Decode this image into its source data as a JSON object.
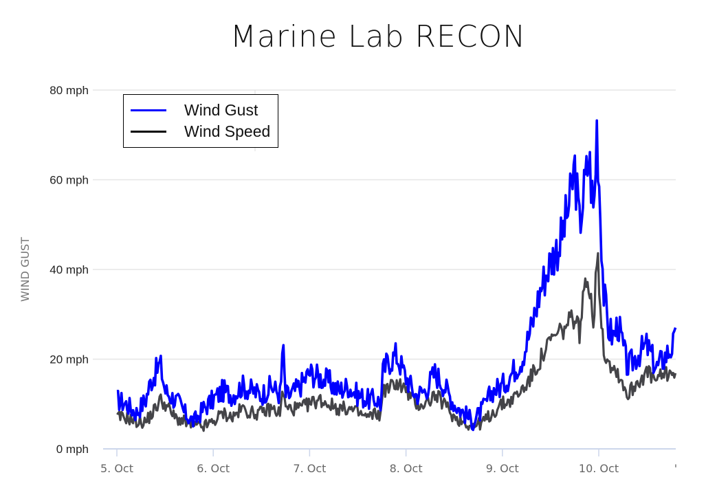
{
  "title": "Marine Lab RECON",
  "legend": {
    "items": [
      {
        "label": "Wind Gust",
        "color": "#0000ff"
      },
      {
        "label": "Wind Speed",
        "color": "#000000"
      }
    ]
  },
  "axes": {
    "ylabel": "WIND GUST",
    "yticks": [
      "0 mph",
      "20 mph",
      "40 mph",
      "60 mph",
      "80 mph"
    ],
    "xticks": [
      "5. Oct",
      "6. Oct",
      "7. Oct",
      "8. Oct",
      "9. Oct",
      "10. Oct"
    ]
  },
  "colors": {
    "gust": "#0000ff",
    "speed": "#444448",
    "grid": "#e6e6e6",
    "axis": "#ccd6eb"
  },
  "chart_data": {
    "type": "line",
    "title": "Marine Lab RECON",
    "xlabel": "",
    "ylabel": "WIND GUST",
    "ylim": [
      0,
      80
    ],
    "xlim_days_since_5_oct": [
      0,
      5.8
    ],
    "x_tick_labels": [
      "5. Oct",
      "6. Oct",
      "7. Oct",
      "8. Oct",
      "9. Oct",
      "10. Oct"
    ],
    "y_tick_labels": [
      "0 mph",
      "20 mph",
      "40 mph",
      "60 mph",
      "80 mph"
    ],
    "grid": true,
    "legend_position": "top-left inside",
    "series": [
      {
        "name": "Wind Gust",
        "color": "#0000ff",
        "x_days": [
          0,
          0.1,
          0.2,
          0.3,
          0.35,
          0.45,
          0.5,
          0.55,
          0.65,
          0.7,
          0.8,
          0.9,
          1.0,
          1.1,
          1.2,
          1.3,
          1.4,
          1.5,
          1.6,
          1.7,
          1.72,
          1.75,
          1.8,
          1.9,
          2.0,
          2.1,
          2.2,
          2.3,
          2.4,
          2.5,
          2.6,
          2.7,
          2.74,
          2.76,
          2.8,
          2.9,
          3.0,
          3.1,
          3.2,
          3.3,
          3.4,
          3.5,
          3.6,
          3.7,
          3.8,
          3.9,
          4.0,
          4.1,
          4.2,
          4.3,
          4.4,
          4.5,
          4.6,
          4.7,
          4.75,
          4.8,
          4.85,
          4.9,
          4.95,
          4.98,
          5.0,
          5.05,
          5.1,
          5.15,
          5.2,
          5.3,
          5.4,
          5.5,
          5.6,
          5.7,
          5.8
        ],
        "values": [
          11,
          10,
          8,
          11,
          15,
          19,
          13,
          12,
          10,
          8,
          6,
          9,
          11,
          13,
          12,
          14,
          13,
          12,
          14,
          12,
          24,
          12,
          12,
          14,
          17,
          16,
          15,
          13,
          14,
          12,
          11,
          11,
          10,
          17,
          19,
          21,
          16,
          12,
          13,
          17,
          14,
          10,
          8,
          6,
          9,
          13,
          14,
          17,
          20,
          27,
          36,
          42,
          46,
          55,
          63,
          50,
          58,
          65,
          52,
          72,
          62,
          35,
          27,
          25,
          28,
          18,
          21,
          23,
          18,
          21,
          24
        ]
      },
      {
        "name": "Wind Speed",
        "color": "#000000",
        "x_days": [
          0,
          0.1,
          0.2,
          0.3,
          0.4,
          0.45,
          0.5,
          0.6,
          0.7,
          0.8,
          0.9,
          1.0,
          1.1,
          1.2,
          1.3,
          1.4,
          1.5,
          1.6,
          1.7,
          1.72,
          1.75,
          1.8,
          1.9,
          2.0,
          2.1,
          2.2,
          2.3,
          2.4,
          2.5,
          2.6,
          2.7,
          2.74,
          2.76,
          2.8,
          2.9,
          3.0,
          3.1,
          3.2,
          3.3,
          3.4,
          3.5,
          3.6,
          3.7,
          3.8,
          3.9,
          4.0,
          4.1,
          4.2,
          4.3,
          4.4,
          4.5,
          4.6,
          4.7,
          4.75,
          4.8,
          4.85,
          4.9,
          4.95,
          4.98,
          5.0,
          5.05,
          5.1,
          5.15,
          5.2,
          5.3,
          5.4,
          5.5,
          5.6,
          5.7,
          5.8
        ],
        "values": [
          7,
          7,
          6,
          6,
          9,
          11,
          10,
          7,
          6,
          5,
          5,
          6,
          8,
          7,
          9,
          8,
          8,
          9,
          8,
          14,
          9,
          9,
          9,
          10,
          11,
          10,
          9,
          9,
          8,
          7,
          8,
          7,
          14,
          13,
          15,
          13,
          10,
          10,
          12,
          10,
          7,
          6,
          5,
          6,
          8,
          10,
          11,
          13,
          16,
          20,
          24,
          26,
          28,
          30,
          26,
          35,
          38,
          28,
          44,
          38,
          22,
          20,
          18,
          17,
          12,
          15,
          17,
          15,
          17,
          17
        ]
      }
    ]
  }
}
